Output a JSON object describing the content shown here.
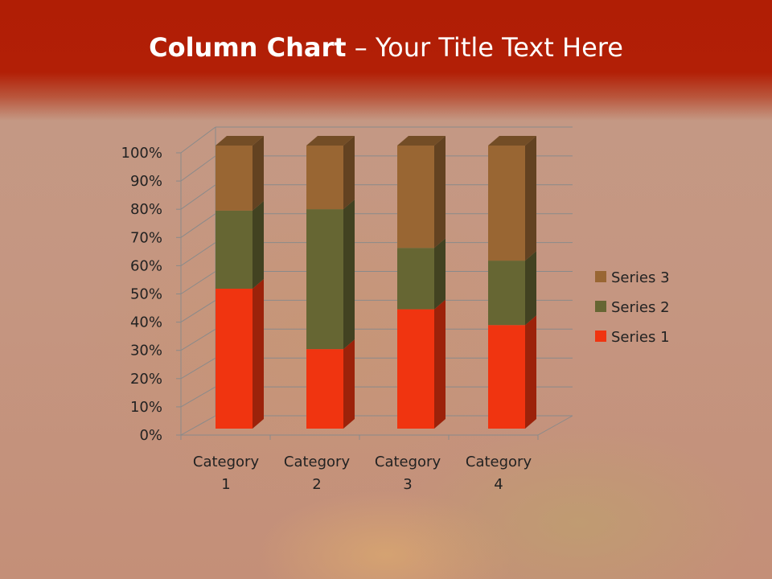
{
  "slide": {
    "title_bold": "Column Chart",
    "title_rest": " – Your Title Text Here"
  },
  "chart_data": {
    "type": "bar",
    "stacking": "percent",
    "three_d": true,
    "categories": [
      "Category 1",
      "Category 2",
      "Category 3",
      "Category 4"
    ],
    "series": [
      {
        "name": "Series 1",
        "values": [
          4.3,
          2.5,
          3.5,
          4.5
        ],
        "color": "#f03410"
      },
      {
        "name": "Series 2",
        "values": [
          2.4,
          4.4,
          1.8,
          2.8
        ],
        "color": "#666633"
      },
      {
        "name": "Series 3",
        "values": [
          2,
          2,
          3,
          5
        ],
        "color": "#996633"
      }
    ],
    "y_ticks": [
      "0%",
      "10%",
      "20%",
      "30%",
      "40%",
      "50%",
      "60%",
      "70%",
      "80%",
      "90%",
      "100%"
    ],
    "ylim": [
      0,
      100
    ],
    "grid": true,
    "legend": "right"
  }
}
